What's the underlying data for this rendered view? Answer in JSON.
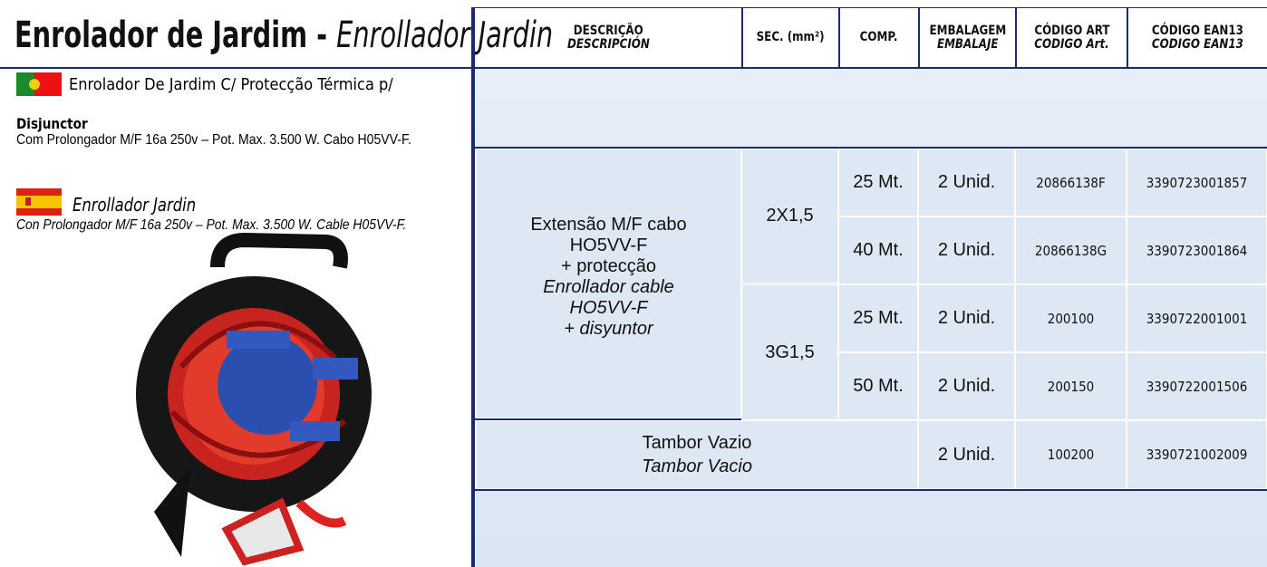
{
  "header": {
    "title": "Enrolador de Jardim -",
    "title_es": "Enrollador Jardin"
  },
  "product": {
    "pt_name": "Enrolador De Jardim C/ Protecção Térmica p/ Disjunctor",
    "pt_desc": "Com Prolongador M/F 16a 250v – Pot. Max. 3.500 W. Cabo H05VV-F.",
    "es_name": "Enrollador Jardin",
    "es_desc": "Con Prolongador M/F 16a 250v – Pot. Max. 3.500 W. Cable H05VV-F."
  },
  "table": {
    "columns": [
      {
        "pt": "DESCRIÇÃO",
        "es": "DESCRIPCIÓN"
      },
      {
        "pt": "SEC. (mm²)"
      },
      {
        "pt": "COMP."
      },
      {
        "pt": "EMBALAGEM",
        "es": "EMBALAJE"
      },
      {
        "pt": "CÓDIGO ART",
        "es": "CODIGO Art."
      },
      {
        "pt": "CÓDIGO EAN13",
        "es": "CODIGO EAN13"
      }
    ],
    "description": {
      "pt_lines": [
        "Extensão M/F cabo",
        "HO5VV-F",
        "+ protecção"
      ],
      "es_lines": [
        "Enrollador cable",
        "HO5VV-F",
        "+ disyuntor"
      ]
    },
    "sections": [
      {
        "sec": "2X1,5",
        "rows": [
          {
            "comp": "25 Mt.",
            "pack": "2 Unid.",
            "code": "20866138F",
            "ean": "3390723001857"
          },
          {
            "comp": "40 Mt.",
            "pack": "2 Unid.",
            "code": "20866138G",
            "ean": "3390723001864"
          }
        ]
      },
      {
        "sec": "3G1,5",
        "rows": [
          {
            "comp": "25 Mt.",
            "pack": "2 Unid.",
            "code": "200100",
            "ean": "3390722001001"
          },
          {
            "comp": "50 Mt.",
            "pack": "2 Unid.",
            "code": "200150",
            "ean": "3390722001506"
          }
        ]
      }
    ],
    "drum": {
      "pt": "Tambor Vazio",
      "es": "Tambor Vacio",
      "pack": "2 Unid.",
      "code": "100200",
      "ean": "3390721002009"
    }
  }
}
